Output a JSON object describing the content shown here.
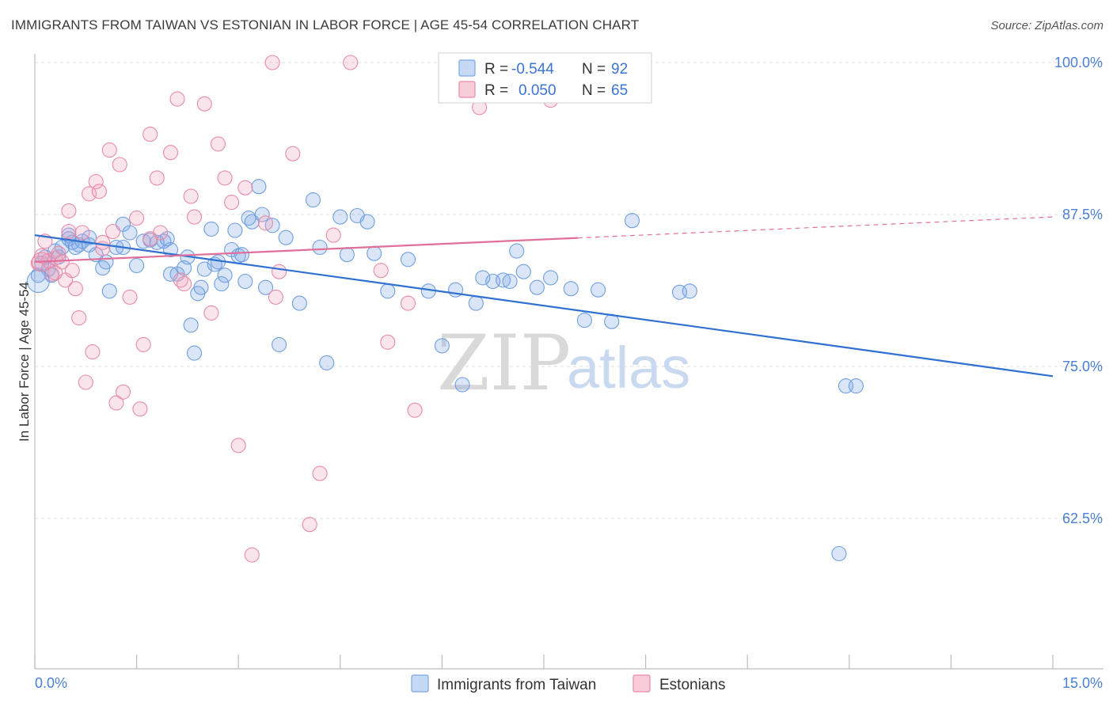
{
  "header": {
    "title": "IMMIGRANTS FROM TAIWAN VS ESTONIAN IN LABOR FORCE | AGE 45-54 CORRELATION CHART",
    "source": "Source: ZipAtlas.com"
  },
  "legend": {
    "series": [
      {
        "r_label": "R =",
        "r_value": "-0.544",
        "n_label": "N =",
        "n_value": "92",
        "color": "#7aa7e6",
        "fill": "#c5d9f4"
      },
      {
        "r_label": "R =",
        "r_value": "0.050",
        "n_label": "N =",
        "n_value": "65",
        "color": "#e98aa8",
        "fill": "#f8cdd9"
      }
    ]
  },
  "bottom_legend": [
    {
      "label": "Immigrants from Taiwan",
      "color": "#7aa7e6",
      "fill": "#c5d9f4"
    },
    {
      "label": "Estonians",
      "color": "#e98aa8",
      "fill": "#f8cdd9"
    }
  ],
  "watermark": {
    "zip": "ZIP",
    "atlas": "atlas"
  },
  "chart_data": {
    "type": "scatter",
    "title": "IMMIGRANTS FROM TAIWAN VS ESTONIAN IN LABOR FORCE | AGE 45-54 CORRELATION CHART",
    "xlabel": "",
    "ylabel": "In Labor Force | Age 45-54",
    "xlim": [
      0,
      15
    ],
    "ylim": [
      52.5,
      101.5
    ],
    "x_tick_labels": [
      {
        "value": 0,
        "label": "0.0%"
      },
      {
        "value": 15,
        "label": "15.0%"
      }
    ],
    "y_tick_labels": [
      {
        "value": 100,
        "label": "100.0%"
      },
      {
        "value": 87.5,
        "label": "87.5%"
      },
      {
        "value": 75,
        "label": "75.0%"
      },
      {
        "value": 62.5,
        "label": "62.5%"
      }
    ],
    "grid": "horizontal dashed",
    "legend_position": "top-center",
    "series": [
      {
        "name": "Immigrants from Taiwan",
        "color": "#4a86d8",
        "trend": {
          "x": [
            0,
            15
          ],
          "y": [
            85.8,
            74.2
          ],
          "dashed_from": null
        },
        "points": [
          [
            0.05,
            82.5
          ],
          [
            0.1,
            83.5
          ],
          [
            0.15,
            84.0
          ],
          [
            0.2,
            83.0
          ],
          [
            0.25,
            82.5
          ],
          [
            0.3,
            84.5
          ],
          [
            0.35,
            84.0
          ],
          [
            0.4,
            84.8
          ],
          [
            0.5,
            85.5
          ],
          [
            0.55,
            85.2
          ],
          [
            0.6,
            84.8
          ],
          [
            0.65,
            85.0
          ],
          [
            0.7,
            85.3
          ],
          [
            0.8,
            85.6
          ],
          [
            0.9,
            84.2
          ],
          [
            1.0,
            83.1
          ],
          [
            1.05,
            83.6
          ],
          [
            1.1,
            81.2
          ],
          [
            1.2,
            84.8
          ],
          [
            1.3,
            84.8
          ],
          [
            1.3,
            86.7
          ],
          [
            1.5,
            83.3
          ],
          [
            1.6,
            85.3
          ],
          [
            1.7,
            85.4
          ],
          [
            1.8,
            85.2
          ],
          [
            1.9,
            85.3
          ],
          [
            1.95,
            85.5
          ],
          [
            2.0,
            82.6
          ],
          [
            2.1,
            82.6
          ],
          [
            2.2,
            83.1
          ],
          [
            2.25,
            84.0
          ],
          [
            2.3,
            78.4
          ],
          [
            2.35,
            76.1
          ],
          [
            2.4,
            81.0
          ],
          [
            2.45,
            81.5
          ],
          [
            2.5,
            83.0
          ],
          [
            2.6,
            86.3
          ],
          [
            2.65,
            83.4
          ],
          [
            2.7,
            83.6
          ],
          [
            2.75,
            81.8
          ],
          [
            2.8,
            82.5
          ],
          [
            2.9,
            84.6
          ],
          [
            2.95,
            86.2
          ],
          [
            3.0,
            84.1
          ],
          [
            3.05,
            84.2
          ],
          [
            3.1,
            82.0
          ],
          [
            3.15,
            87.2
          ],
          [
            3.2,
            86.9
          ],
          [
            3.3,
            89.8
          ],
          [
            3.35,
            87.5
          ],
          [
            3.4,
            81.5
          ],
          [
            3.5,
            86.6
          ],
          [
            3.6,
            76.8
          ],
          [
            3.7,
            85.6
          ],
          [
            3.9,
            80.2
          ],
          [
            4.1,
            88.7
          ],
          [
            4.2,
            84.8
          ],
          [
            4.3,
            75.3
          ],
          [
            4.5,
            87.3
          ],
          [
            4.6,
            84.2
          ],
          [
            4.75,
            87.4
          ],
          [
            4.9,
            86.9
          ],
          [
            5.0,
            84.3
          ],
          [
            5.2,
            81.2
          ],
          [
            5.5,
            83.8
          ],
          [
            5.8,
            81.2
          ],
          [
            6.0,
            76.7
          ],
          [
            6.2,
            81.3
          ],
          [
            6.3,
            73.5
          ],
          [
            6.5,
            80.2
          ],
          [
            6.6,
            82.3
          ],
          [
            6.75,
            82.0
          ],
          [
            6.9,
            82.1
          ],
          [
            7.0,
            82.0
          ],
          [
            7.1,
            84.5
          ],
          [
            7.2,
            82.8
          ],
          [
            7.4,
            81.5
          ],
          [
            7.6,
            82.3
          ],
          [
            7.9,
            81.4
          ],
          [
            8.1,
            78.8
          ],
          [
            8.3,
            81.3
          ],
          [
            8.5,
            78.7
          ],
          [
            8.8,
            87.0
          ],
          [
            9.5,
            81.1
          ],
          [
            9.65,
            81.2
          ],
          [
            11.95,
            73.4
          ],
          [
            12.1,
            73.4
          ],
          [
            11.85,
            59.6
          ],
          [
            0.5,
            85.8
          ],
          [
            1.4,
            86.0
          ],
          [
            2.0,
            84.6
          ],
          [
            0.8,
            85.0
          ]
        ]
      },
      {
        "name": "Estonians",
        "color": "#e0709a",
        "trend": {
          "x": [
            0,
            15
          ],
          "y": [
            83.6,
            87.3
          ],
          "dashed_from": 8.0
        },
        "points": [
          [
            0.05,
            83.5
          ],
          [
            0.1,
            84.1
          ],
          [
            0.15,
            85.3
          ],
          [
            0.2,
            83.7
          ],
          [
            0.25,
            82.6
          ],
          [
            0.3,
            83.9
          ],
          [
            0.35,
            84.3
          ],
          [
            0.4,
            83.6
          ],
          [
            0.45,
            82.1
          ],
          [
            0.5,
            87.8
          ],
          [
            0.55,
            82.9
          ],
          [
            0.6,
            81.4
          ],
          [
            0.65,
            79.0
          ],
          [
            0.7,
            86.0
          ],
          [
            0.75,
            73.7
          ],
          [
            0.8,
            89.2
          ],
          [
            0.85,
            76.2
          ],
          [
            0.9,
            90.2
          ],
          [
            0.95,
            89.4
          ],
          [
            1.0,
            84.7
          ],
          [
            1.1,
            92.8
          ],
          [
            1.15,
            86.1
          ],
          [
            1.2,
            72.0
          ],
          [
            1.25,
            91.6
          ],
          [
            1.3,
            72.9
          ],
          [
            1.4,
            80.7
          ],
          [
            1.5,
            87.2
          ],
          [
            1.55,
            71.5
          ],
          [
            1.6,
            76.8
          ],
          [
            1.7,
            94.1
          ],
          [
            1.8,
            90.5
          ],
          [
            1.85,
            86.0
          ],
          [
            2.0,
            92.6
          ],
          [
            2.1,
            97.0
          ],
          [
            2.15,
            82.1
          ],
          [
            2.2,
            81.8
          ],
          [
            2.3,
            89.0
          ],
          [
            2.35,
            87.3
          ],
          [
            2.5,
            96.6
          ],
          [
            2.6,
            79.4
          ],
          [
            2.7,
            93.3
          ],
          [
            2.8,
            90.5
          ],
          [
            2.9,
            88.5
          ],
          [
            3.0,
            68.5
          ],
          [
            3.1,
            89.7
          ],
          [
            3.2,
            59.5
          ],
          [
            3.4,
            86.8
          ],
          [
            3.5,
            100.0
          ],
          [
            3.55,
            80.7
          ],
          [
            3.6,
            82.8
          ],
          [
            3.8,
            92.5
          ],
          [
            4.05,
            62.0
          ],
          [
            4.2,
            66.2
          ],
          [
            4.4,
            85.8
          ],
          [
            4.65,
            100.0
          ],
          [
            5.1,
            82.9
          ],
          [
            5.2,
            77.0
          ],
          [
            5.5,
            80.2
          ],
          [
            5.6,
            71.4
          ],
          [
            6.55,
            96.3
          ],
          [
            7.6,
            96.9
          ],
          [
            1.7,
            85.5
          ],
          [
            0.3,
            82.7
          ],
          [
            0.5,
            86.1
          ],
          [
            1.0,
            85.2
          ]
        ]
      }
    ]
  }
}
